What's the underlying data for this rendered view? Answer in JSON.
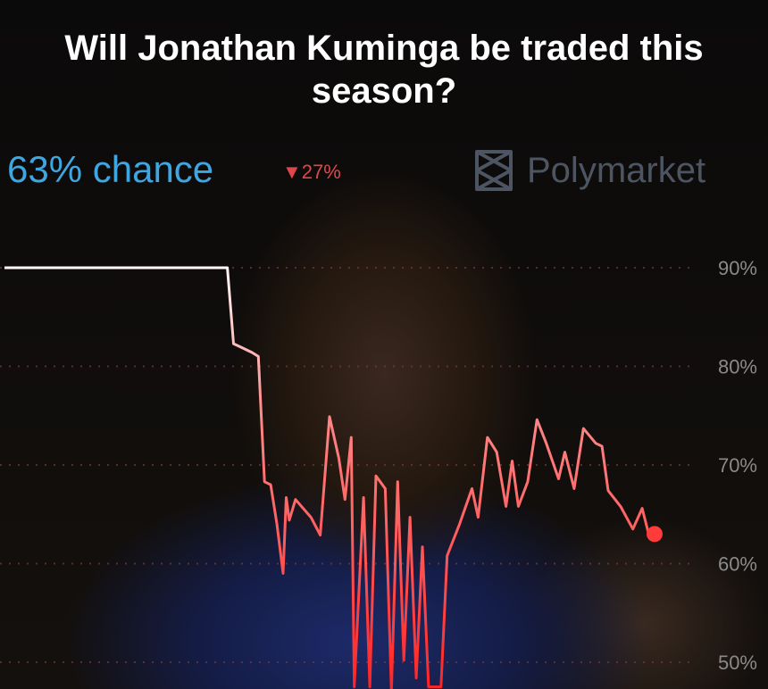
{
  "title": "Will Jonathan Kuminga be traded this season?",
  "chance": "63% chance",
  "change": "27%",
  "change_direction": "down",
  "brand": "Polymarket",
  "colors": {
    "chance": "#3ea6e0",
    "change": "#e0474c",
    "line_top": "#ffffff",
    "line_bottom": "#ff2a2a"
  },
  "chart_data": {
    "type": "line",
    "title": "Will Jonathan Kuminga be traded this season?",
    "ylim": [
      50,
      90
    ],
    "yticks": [
      "90%",
      "80%",
      "70%",
      "60%",
      "50%"
    ],
    "ytick_values": [
      90,
      80,
      70,
      60,
      50
    ],
    "grid": "horizontal dotted",
    "series": [
      {
        "points": [
          [
            0,
            90
          ],
          [
            36,
            90
          ],
          [
            37,
            82.3
          ],
          [
            38,
            82
          ],
          [
            40,
            81.4
          ],
          [
            41,
            81
          ],
          [
            42,
            68.3
          ],
          [
            43,
            68
          ],
          [
            44,
            64
          ],
          [
            45,
            59
          ],
          [
            45.5,
            66.7
          ],
          [
            46,
            64.4
          ],
          [
            47,
            66.5
          ],
          [
            49.5,
            64.7
          ],
          [
            51,
            62.9
          ],
          [
            52.5,
            74.9
          ],
          [
            54,
            70.7
          ],
          [
            55,
            66.5
          ],
          [
            56,
            72.8
          ],
          [
            56.5,
            47.5
          ],
          [
            58,
            66.7
          ],
          [
            59,
            47.5
          ],
          [
            60,
            68.9
          ],
          [
            61.5,
            67.6
          ],
          [
            62.5,
            47
          ],
          [
            63.5,
            68.3
          ],
          [
            64.5,
            50.2
          ],
          [
            65.5,
            64.7
          ],
          [
            66.5,
            48.4
          ],
          [
            67.5,
            61.7
          ],
          [
            68.5,
            47.5
          ],
          [
            70.5,
            47.5
          ],
          [
            71.5,
            60.8
          ],
          [
            73.5,
            64
          ],
          [
            75.5,
            67.6
          ],
          [
            76.5,
            64.7
          ],
          [
            78,
            72.8
          ],
          [
            79.5,
            71.3
          ],
          [
            81,
            65.8
          ],
          [
            82,
            70.4
          ],
          [
            83,
            65.8
          ],
          [
            84.5,
            68.3
          ],
          [
            86,
            74.6
          ],
          [
            87.5,
            72.2
          ],
          [
            89.5,
            68.6
          ],
          [
            90.5,
            71.3
          ],
          [
            92,
            67.6
          ],
          [
            93.5,
            73.7
          ],
          [
            95.5,
            72.2
          ],
          [
            96.5,
            71.9
          ],
          [
            97.5,
            67.4
          ],
          [
            99.5,
            65.8
          ],
          [
            101.5,
            63.5
          ],
          [
            103,
            65.6
          ],
          [
            104,
            63.1
          ],
          [
            105,
            63
          ]
        ]
      }
    ]
  }
}
